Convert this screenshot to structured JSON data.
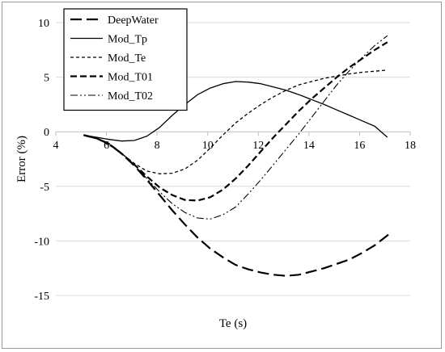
{
  "chart_data": {
    "type": "line",
    "title": "",
    "xlabel": "Te (s)",
    "ylabel": "Error (%)",
    "xlim": [
      4,
      18
    ],
    "ylim": [
      -15,
      10
    ],
    "xticks": [
      4,
      6,
      8,
      10,
      12,
      14,
      16,
      18
    ],
    "yticks": [
      -15,
      -10,
      -5,
      0,
      5,
      10
    ],
    "grid": "horizontal",
    "legend_position": "top-left",
    "series": [
      {
        "name": "DeepWater",
        "style": "long-dash",
        "color": "#000000",
        "points": [
          [
            5.1,
            -0.3
          ],
          [
            5.6,
            -0.6
          ],
          [
            6.1,
            -1.1
          ],
          [
            6.6,
            -2.0
          ],
          [
            7.1,
            -3.1
          ],
          [
            7.6,
            -4.4
          ],
          [
            8.1,
            -5.8
          ],
          [
            8.6,
            -7.2
          ],
          [
            9.1,
            -8.5
          ],
          [
            9.6,
            -9.7
          ],
          [
            10.1,
            -10.7
          ],
          [
            10.6,
            -11.5
          ],
          [
            11.1,
            -12.2
          ],
          [
            11.6,
            -12.6
          ],
          [
            12.1,
            -12.9
          ],
          [
            12.6,
            -13.1
          ],
          [
            13.1,
            -13.2
          ],
          [
            13.6,
            -13.1
          ],
          [
            14.1,
            -12.8
          ],
          [
            14.6,
            -12.5
          ],
          [
            15.1,
            -12.1
          ],
          [
            15.6,
            -11.7
          ],
          [
            16.1,
            -11.1
          ],
          [
            16.6,
            -10.4
          ],
          [
            17.1,
            -9.5
          ],
          [
            17.2,
            -9.3
          ]
        ]
      },
      {
        "name": "Mod_Tp",
        "style": "solid",
        "color": "#000000",
        "points": [
          [
            5.1,
            -0.3
          ],
          [
            5.6,
            -0.5
          ],
          [
            6.1,
            -0.7
          ],
          [
            6.6,
            -0.85
          ],
          [
            7.1,
            -0.8
          ],
          [
            7.6,
            -0.4
          ],
          [
            8.1,
            0.4
          ],
          [
            8.6,
            1.5
          ],
          [
            9.1,
            2.5
          ],
          [
            9.6,
            3.4
          ],
          [
            10.1,
            4.0
          ],
          [
            10.6,
            4.4
          ],
          [
            11.1,
            4.6
          ],
          [
            11.6,
            4.55
          ],
          [
            12.1,
            4.4
          ],
          [
            12.6,
            4.1
          ],
          [
            13.1,
            3.8
          ],
          [
            13.6,
            3.4
          ],
          [
            14.1,
            2.95
          ],
          [
            14.6,
            2.5
          ],
          [
            15.1,
            2.0
          ],
          [
            15.6,
            1.5
          ],
          [
            16.1,
            1.0
          ],
          [
            16.6,
            0.5
          ],
          [
            17.1,
            -0.5
          ]
        ]
      },
      {
        "name": "Mod_Te",
        "style": "short-dash",
        "color": "#000000",
        "points": [
          [
            5.1,
            -0.3
          ],
          [
            5.6,
            -0.6
          ],
          [
            6.1,
            -1.2
          ],
          [
            6.6,
            -2.0
          ],
          [
            7.1,
            -2.9
          ],
          [
            7.6,
            -3.6
          ],
          [
            8.1,
            -3.85
          ],
          [
            8.6,
            -3.8
          ],
          [
            9.1,
            -3.4
          ],
          [
            9.6,
            -2.6
          ],
          [
            10.1,
            -1.5
          ],
          [
            10.6,
            -0.3
          ],
          [
            11.1,
            0.8
          ],
          [
            11.6,
            1.7
          ],
          [
            12.1,
            2.5
          ],
          [
            12.6,
            3.2
          ],
          [
            13.1,
            3.8
          ],
          [
            13.6,
            4.3
          ],
          [
            14.1,
            4.6
          ],
          [
            14.6,
            4.9
          ],
          [
            15.1,
            5.1
          ],
          [
            15.6,
            5.3
          ],
          [
            16.1,
            5.45
          ],
          [
            16.6,
            5.55
          ],
          [
            17.1,
            5.65
          ]
        ]
      },
      {
        "name": "Mod_T01",
        "style": "medium-dash",
        "color": "#000000",
        "points": [
          [
            5.1,
            -0.3
          ],
          [
            5.6,
            -0.6
          ],
          [
            6.1,
            -1.1
          ],
          [
            6.6,
            -2.0
          ],
          [
            7.1,
            -3.0
          ],
          [
            7.6,
            -4.1
          ],
          [
            8.1,
            -5.1
          ],
          [
            8.6,
            -5.8
          ],
          [
            9.1,
            -6.25
          ],
          [
            9.6,
            -6.3
          ],
          [
            10.1,
            -6.0
          ],
          [
            10.6,
            -5.3
          ],
          [
            11.1,
            -4.3
          ],
          [
            11.6,
            -3.1
          ],
          [
            12.1,
            -1.8
          ],
          [
            12.6,
            -0.5
          ],
          [
            13.1,
            0.7
          ],
          [
            13.6,
            1.9
          ],
          [
            14.1,
            3.0
          ],
          [
            14.6,
            4.0
          ],
          [
            15.1,
            5.0
          ],
          [
            15.6,
            5.9
          ],
          [
            16.1,
            6.7
          ],
          [
            16.6,
            7.5
          ],
          [
            17.1,
            8.2
          ]
        ]
      },
      {
        "name": "Mod_T02",
        "style": "dash-dot-dot",
        "color": "#000000",
        "points": [
          [
            5.1,
            -0.3
          ],
          [
            5.6,
            -0.6
          ],
          [
            6.1,
            -1.1
          ],
          [
            6.6,
            -2.0
          ],
          [
            7.1,
            -3.0
          ],
          [
            7.6,
            -4.3
          ],
          [
            8.1,
            -5.5
          ],
          [
            8.6,
            -6.6
          ],
          [
            9.1,
            -7.4
          ],
          [
            9.6,
            -7.9
          ],
          [
            10.1,
            -8.0
          ],
          [
            10.6,
            -7.6
          ],
          [
            11.1,
            -6.9
          ],
          [
            11.6,
            -5.7
          ],
          [
            12.1,
            -4.4
          ],
          [
            12.6,
            -3.0
          ],
          [
            13.1,
            -1.6
          ],
          [
            13.6,
            -0.2
          ],
          [
            14.1,
            1.3
          ],
          [
            14.6,
            2.8
          ],
          [
            15.1,
            4.3
          ],
          [
            15.6,
            5.6
          ],
          [
            16.1,
            6.8
          ],
          [
            16.6,
            7.9
          ],
          [
            17.1,
            8.8
          ]
        ]
      }
    ]
  }
}
